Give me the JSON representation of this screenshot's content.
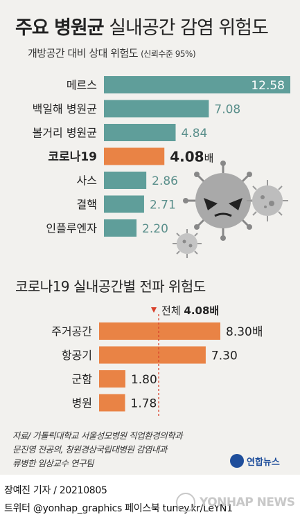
{
  "title": {
    "bold": "주요 병원균",
    "regular": "실내공간 감염 위험도"
  },
  "subtitle": {
    "main": "개방공간 대비 상대 위험도",
    "note": "(신뢰수준 95%)"
  },
  "section2_title": "코로나19 실내공간별 전파 위험도",
  "source_lines": [
    "자료/ 가톨릭대학교 서울성모병원 직업환경의학과",
    "문진영 전공의, 창원경상국립대병원 감염내과",
    "류병한 임상교수 연구팀"
  ],
  "logo": "연합뉴스",
  "footer": {
    "credit": "장예진 기자 / 20210805",
    "social": "트위터 @yonhap_graphics  페이스북 tuney.kr/LeYN1",
    "watermark": "YONHAP NEWS"
  },
  "colors": {
    "teal": "#5f9e9a",
    "orange": "#e98345",
    "background": "#f2f1ee",
    "value_text": "#5a8f8b"
  },
  "icons": [
    "virus-angry-icon",
    "virus-small-icon",
    "virus-tiny-icon"
  ],
  "chart_data": [
    {
      "type": "bar",
      "orientation": "horizontal",
      "categories": [
        "메르스",
        "백일해 병원균",
        "볼거리 병원균",
        "코로나19",
        "사스",
        "결핵",
        "인플루엔자"
      ],
      "values": [
        12.58,
        7.08,
        4.84,
        4.08,
        2.86,
        2.71,
        2.2
      ],
      "value_labels": [
        "12.58",
        "7.08",
        "4.84",
        "4.08",
        "2.86",
        "2.71",
        "2.20"
      ],
      "highlight_index": 3,
      "highlight_unit": "배"
    },
    {
      "type": "bar",
      "orientation": "horizontal",
      "categories": [
        "주거공간",
        "항공기",
        "군함",
        "병원"
      ],
      "values": [
        8.3,
        7.3,
        1.8,
        1.78
      ],
      "value_labels": [
        "8.30배",
        "7.30",
        "1.80",
        "1.78"
      ],
      "reference_value": 4.08,
      "reference_label": "전체",
      "reference_value_label": "4.08배"
    }
  ]
}
